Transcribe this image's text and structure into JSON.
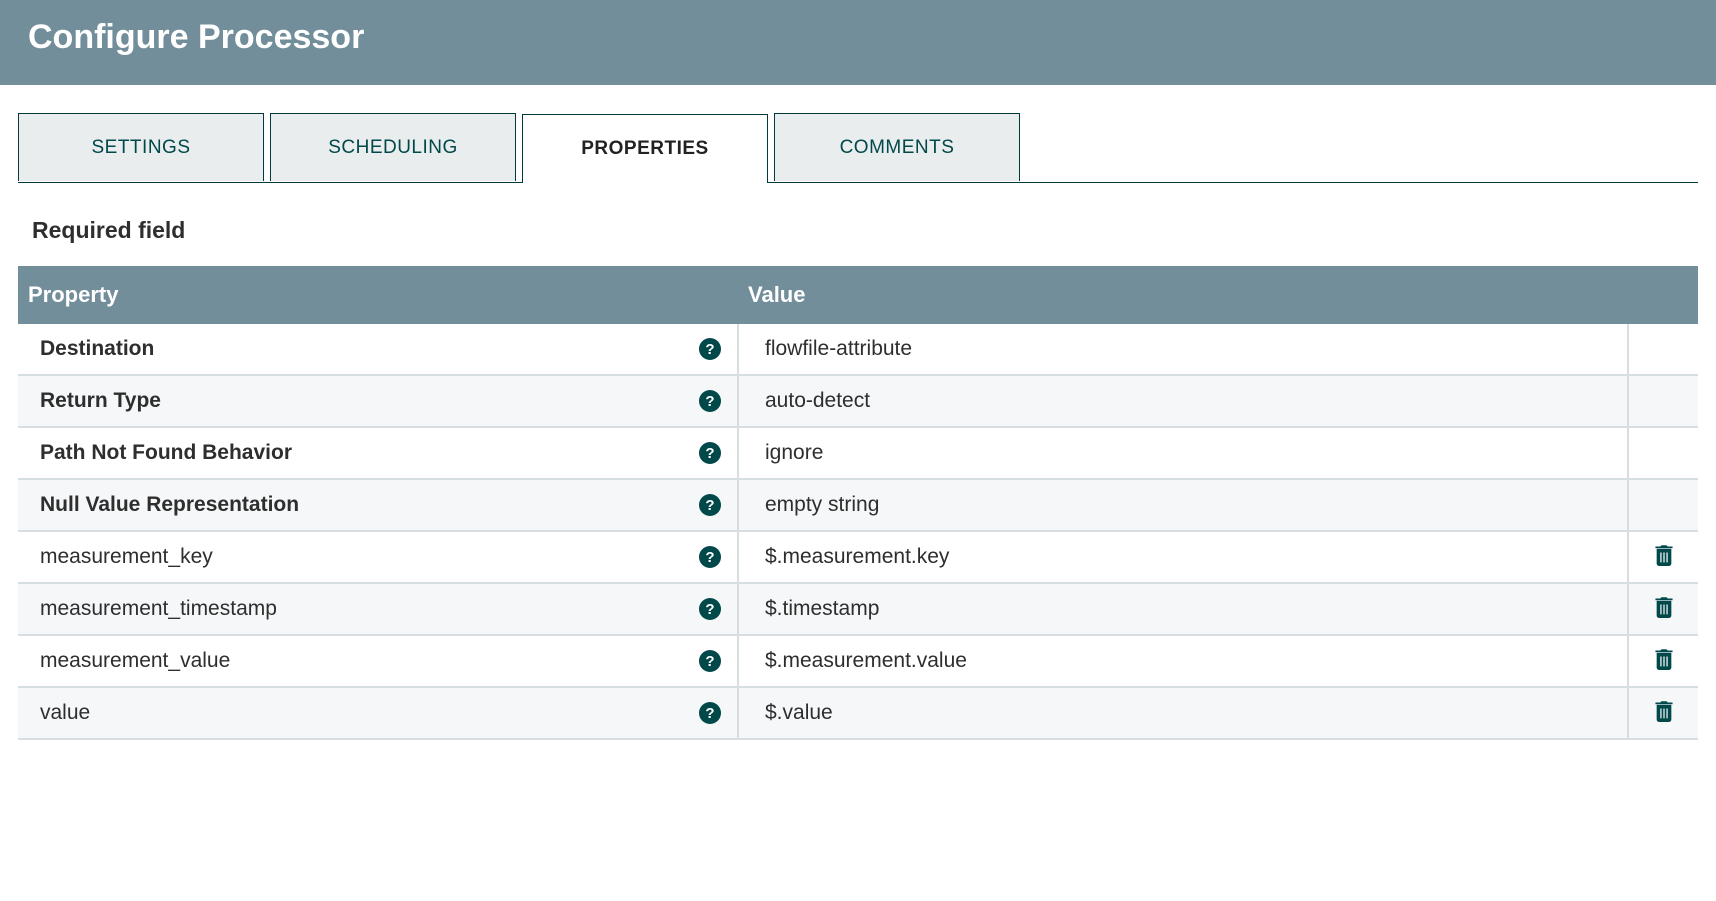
{
  "dialog": {
    "title": "Configure Processor"
  },
  "tabs": [
    {
      "label": "SETTINGS",
      "active": false
    },
    {
      "label": "SCHEDULING",
      "active": false
    },
    {
      "label": "PROPERTIES",
      "active": true
    },
    {
      "label": "COMMENTS",
      "active": false
    }
  ],
  "requiredLabel": "Required field",
  "tableHeaders": {
    "property": "Property",
    "value": "Value"
  },
  "rows": [
    {
      "property": "Destination",
      "value": "flowfile-attribute",
      "required": true,
      "deletable": false
    },
    {
      "property": "Return Type",
      "value": "auto-detect",
      "required": true,
      "deletable": false
    },
    {
      "property": "Path Not Found Behavior",
      "value": "ignore",
      "required": true,
      "deletable": false
    },
    {
      "property": "Null Value Representation",
      "value": "empty string",
      "required": true,
      "deletable": false
    },
    {
      "property": "measurement_key",
      "value": "$.measurement.key",
      "required": false,
      "deletable": true
    },
    {
      "property": "measurement_timestamp",
      "value": "$.timestamp",
      "required": false,
      "deletable": true
    },
    {
      "property": "measurement_value",
      "value": "$.measurement.value",
      "required": false,
      "deletable": true
    },
    {
      "property": "value",
      "value": "$.value",
      "required": false,
      "deletable": true
    }
  ],
  "colors": {
    "headerBg": "#728e9b",
    "accent": "#004849",
    "tabBg": "#eaedee",
    "tabBorder": "#003a3a",
    "rowAlt": "#f5f7f8",
    "rowBorder": "#d7dee1"
  }
}
